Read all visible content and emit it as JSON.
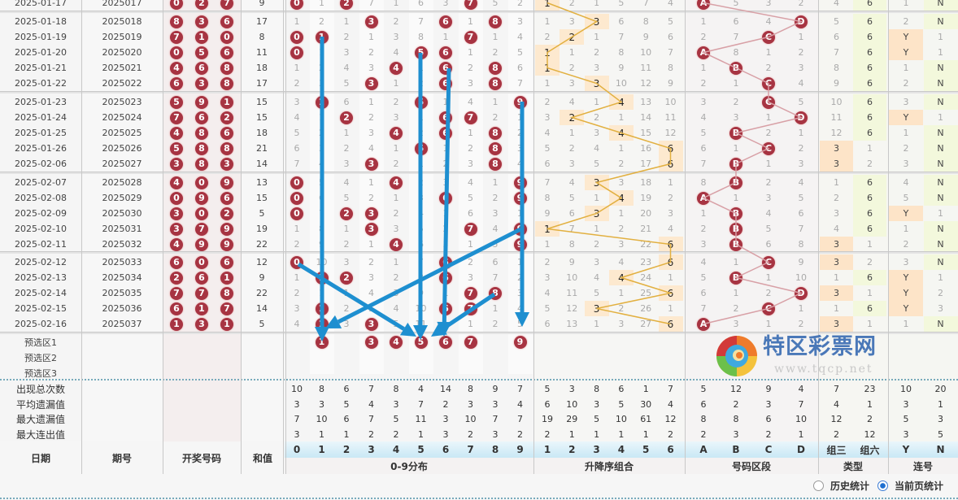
{
  "headers": {
    "date": "日期",
    "issue": "期号",
    "draw": "开奖号码",
    "sum": "和值",
    "digits": [
      "0",
      "1",
      "2",
      "3",
      "4",
      "5",
      "6",
      "7",
      "8",
      "9"
    ],
    "dist_label": "0-9分布",
    "asc": [
      "1",
      "2",
      "3",
      "4",
      "5",
      "6"
    ],
    "asc_label": "升降序组合",
    "zones": [
      "A",
      "B",
      "C",
      "D"
    ],
    "zones_label": "号码区段",
    "types": [
      "组三",
      "组六"
    ],
    "types_label": "类型",
    "lian": [
      "Y",
      "N"
    ],
    "lian_label": "连号"
  },
  "rows": [
    {
      "date": "2025-01-17",
      "issue": "2025017",
      "draw": [
        "0",
        "2",
        "7"
      ],
      "sum": "9",
      "dist": [
        "0",
        "1",
        "2",
        "7",
        "1",
        "6",
        "3",
        "7",
        "5",
        "2"
      ],
      "asc": [
        "1",
        "2",
        "1",
        "5",
        "7",
        "4"
      ],
      "asc_hit": 0,
      "ad": [
        "A",
        "5",
        "3",
        "2"
      ],
      "ad_hit": 0,
      "ty": [
        "4",
        "6"
      ],
      "ty_hit": 1,
      "lh": [
        "1",
        "N"
      ],
      "lh_hit": 1
    },
    {
      "date": "2025-01-18",
      "issue": "2025018",
      "draw": [
        "8",
        "3",
        "6"
      ],
      "sum": "17",
      "dist": [
        "1",
        "2",
        "1",
        "3",
        "2",
        "7",
        "6",
        "1",
        "8",
        "3"
      ],
      "asc": [
        "1",
        "3",
        "3",
        "6",
        "8",
        "5"
      ],
      "asc_hit": 2,
      "ad": [
        "1",
        "6",
        "4",
        "D"
      ],
      "ad_hit": 3,
      "ty": [
        "5",
        "6"
      ],
      "ty_hit": 1,
      "lh": [
        "2",
        "N"
      ],
      "lh_hit": 1
    },
    {
      "date": "2025-01-19",
      "issue": "2025019",
      "draw": [
        "7",
        "1",
        "0"
      ],
      "sum": "8",
      "dist": [
        "0",
        "1",
        "2",
        "1",
        "3",
        "8",
        "1",
        "7",
        "1",
        "4"
      ],
      "asc": [
        "2",
        "2",
        "1",
        "7",
        "9",
        "6"
      ],
      "asc_hit": 1,
      "ad": [
        "2",
        "7",
        "C",
        "1"
      ],
      "ad_hit": 2,
      "ty": [
        "6",
        "6"
      ],
      "ty_hit": 1,
      "lh": [
        "Y",
        "1"
      ],
      "lh_hit": 0
    },
    {
      "date": "2025-01-20",
      "issue": "2025020",
      "draw": [
        "0",
        "5",
        "6"
      ],
      "sum": "11",
      "dist": [
        "0",
        "1",
        "3",
        "2",
        "4",
        "5",
        "6",
        "1",
        "2",
        "5"
      ],
      "asc": [
        "1",
        "1",
        "2",
        "8",
        "10",
        "7"
      ],
      "asc_hit": 0,
      "ad": [
        "A",
        "8",
        "1",
        "2"
      ],
      "ad_hit": 0,
      "ty": [
        "7",
        "6"
      ],
      "ty_hit": 1,
      "lh": [
        "Y",
        "1"
      ],
      "lh_hit": 0
    },
    {
      "date": "2025-01-21",
      "issue": "2025021",
      "draw": [
        "4",
        "6",
        "8"
      ],
      "sum": "18",
      "dist": [
        "1",
        "2",
        "4",
        "3",
        "4",
        "1",
        "6",
        "2",
        "8",
        "6"
      ],
      "asc": [
        "1",
        "2",
        "3",
        "9",
        "11",
        "8"
      ],
      "asc_hit": 0,
      "ad": [
        "1",
        "B",
        "2",
        "3"
      ],
      "ad_hit": 1,
      "ty": [
        "8",
        "6"
      ],
      "ty_hit": 1,
      "lh": [
        "1",
        "N"
      ],
      "lh_hit": 1
    },
    {
      "date": "2025-01-22",
      "issue": "2025022",
      "draw": [
        "6",
        "3",
        "8"
      ],
      "sum": "17",
      "dist": [
        "2",
        "3",
        "5",
        "3",
        "1",
        "2",
        "6",
        "3",
        "8",
        "7"
      ],
      "asc": [
        "1",
        "3",
        "3",
        "10",
        "12",
        "9"
      ],
      "asc_hit": 2,
      "ad": [
        "2",
        "1",
        "C",
        "4"
      ],
      "ad_hit": 2,
      "ty": [
        "9",
        "6"
      ],
      "ty_hit": 1,
      "lh": [
        "2",
        "N"
      ],
      "lh_hit": 1
    },
    {
      "date": "2025-01-23",
      "issue": "2025023",
      "draw": [
        "5",
        "9",
        "1"
      ],
      "sum": "15",
      "dist": [
        "3",
        "1",
        "6",
        "1",
        "2",
        "5",
        "1",
        "4",
        "1",
        "9"
      ],
      "asc": [
        "2",
        "4",
        "1",
        "4",
        "13",
        "10"
      ],
      "asc_hit": 3,
      "ad": [
        "3",
        "2",
        "C",
        "5"
      ],
      "ad_hit": 2,
      "ty": [
        "10",
        "6"
      ],
      "ty_hit": 1,
      "lh": [
        "3",
        "N"
      ],
      "lh_hit": 1
    },
    {
      "date": "2025-01-24",
      "issue": "2025024",
      "draw": [
        "7",
        "6",
        "2"
      ],
      "sum": "15",
      "dist": [
        "4",
        "1",
        "2",
        "2",
        "3",
        "1",
        "6",
        "7",
        "2",
        "1"
      ],
      "asc": [
        "3",
        "2",
        "2",
        "1",
        "14",
        "11"
      ],
      "asc_hit": 1,
      "ad": [
        "4",
        "3",
        "1",
        "D"
      ],
      "ad_hit": 3,
      "ty": [
        "11",
        "6"
      ],
      "ty_hit": 1,
      "lh": [
        "Y",
        "1"
      ],
      "lh_hit": 0
    },
    {
      "date": "2025-01-25",
      "issue": "2025025",
      "draw": [
        "4",
        "8",
        "6"
      ],
      "sum": "18",
      "dist": [
        "5",
        "2",
        "1",
        "3",
        "4",
        "2",
        "6",
        "1",
        "8",
        "2"
      ],
      "asc": [
        "4",
        "1",
        "3",
        "4",
        "15",
        "12"
      ],
      "asc_hit": 3,
      "ad": [
        "5",
        "B",
        "2",
        "1"
      ],
      "ad_hit": 1,
      "ty": [
        "12",
        "6"
      ],
      "ty_hit": 1,
      "lh": [
        "1",
        "N"
      ],
      "lh_hit": 1
    },
    {
      "date": "2025-01-26",
      "issue": "2025026",
      "draw": [
        "5",
        "8",
        "8"
      ],
      "sum": "21",
      "dist": [
        "6",
        "3",
        "2",
        "4",
        "1",
        "5",
        "1",
        "2",
        "8",
        "3"
      ],
      "asc": [
        "5",
        "2",
        "4",
        "1",
        "16",
        "6"
      ],
      "asc_hit": 5,
      "ad": [
        "6",
        "1",
        "C",
        "2"
      ],
      "ad_hit": 2,
      "ty": [
        "3",
        "1"
      ],
      "ty_hit": 0,
      "lh": [
        "2",
        "N"
      ],
      "lh_hit": 1
    },
    {
      "date": "2025-02-06",
      "issue": "2025027",
      "draw": [
        "3",
        "8",
        "3"
      ],
      "sum": "14",
      "dist": [
        "7",
        "4",
        "3",
        "3",
        "2",
        "1",
        "2",
        "3",
        "8",
        "4"
      ],
      "asc": [
        "6",
        "3",
        "5",
        "2",
        "17",
        "6"
      ],
      "asc_hit": 5,
      "ad": [
        "7",
        "B",
        "1",
        "3"
      ],
      "ad_hit": 1,
      "ty": [
        "3",
        "2"
      ],
      "ty_hit": 0,
      "lh": [
        "3",
        "N"
      ],
      "lh_hit": 1
    },
    {
      "date": "2025-02-07",
      "issue": "2025028",
      "draw": [
        "4",
        "0",
        "9"
      ],
      "sum": "13",
      "dist": [
        "0",
        "5",
        "4",
        "1",
        "4",
        "2",
        "3",
        "4",
        "1",
        "9"
      ],
      "asc": [
        "7",
        "4",
        "3",
        "3",
        "18",
        "1"
      ],
      "asc_hit": 2,
      "ad": [
        "8",
        "B",
        "2",
        "4"
      ],
      "ad_hit": 1,
      "ty": [
        "1",
        "6"
      ],
      "ty_hit": 1,
      "lh": [
        "4",
        "N"
      ],
      "lh_hit": 1
    },
    {
      "date": "2025-02-08",
      "issue": "2025029",
      "draw": [
        "0",
        "9",
        "6"
      ],
      "sum": "15",
      "dist": [
        "0",
        "6",
        "5",
        "2",
        "1",
        "3",
        "6",
        "5",
        "2",
        "9"
      ],
      "asc": [
        "8",
        "5",
        "1",
        "4",
        "19",
        "2"
      ],
      "asc_hit": 3,
      "ad": [
        "A",
        "1",
        "3",
        "5"
      ],
      "ad_hit": 0,
      "ty": [
        "2",
        "6"
      ],
      "ty_hit": 1,
      "lh": [
        "5",
        "N"
      ],
      "lh_hit": 1
    },
    {
      "date": "2025-02-09",
      "issue": "2025030",
      "draw": [
        "3",
        "0",
        "2"
      ],
      "sum": "5",
      "dist": [
        "0",
        "7",
        "2",
        "3",
        "2",
        "4",
        "1",
        "6",
        "3",
        "1"
      ],
      "asc": [
        "9",
        "6",
        "3",
        "1",
        "20",
        "3"
      ],
      "asc_hit": 2,
      "ad": [
        "1",
        "B",
        "4",
        "6"
      ],
      "ad_hit": 1,
      "ty": [
        "3",
        "6"
      ],
      "ty_hit": 1,
      "lh": [
        "Y",
        "1"
      ],
      "lh_hit": 0
    },
    {
      "date": "2025-02-10",
      "issue": "2025031",
      "draw": [
        "3",
        "7",
        "9"
      ],
      "sum": "19",
      "dist": [
        "1",
        "8",
        "1",
        "3",
        "3",
        "5",
        "2",
        "7",
        "4",
        "9"
      ],
      "asc": [
        "1",
        "7",
        "1",
        "2",
        "21",
        "4"
      ],
      "asc_hit": 0,
      "ad": [
        "2",
        "B",
        "5",
        "7"
      ],
      "ad_hit": 1,
      "ty": [
        "4",
        "6"
      ],
      "ty_hit": 1,
      "lh": [
        "1",
        "N"
      ],
      "lh_hit": 1
    },
    {
      "date": "2025-02-11",
      "issue": "2025032",
      "draw": [
        "4",
        "9",
        "9"
      ],
      "sum": "22",
      "dist": [
        "2",
        "9",
        "2",
        "1",
        "4",
        "6",
        "3",
        "1",
        "5",
        "9"
      ],
      "asc": [
        "1",
        "8",
        "2",
        "3",
        "22",
        "6"
      ],
      "asc_hit": 5,
      "ad": [
        "3",
        "B",
        "6",
        "8"
      ],
      "ad_hit": 1,
      "ty": [
        "3",
        "1"
      ],
      "ty_hit": 0,
      "lh": [
        "2",
        "N"
      ],
      "lh_hit": 1
    },
    {
      "date": "2025-02-12",
      "issue": "2025033",
      "draw": [
        "6",
        "0",
        "6"
      ],
      "sum": "12",
      "dist": [
        "0",
        "10",
        "3",
        "2",
        "1",
        "7",
        "6",
        "2",
        "6",
        "1"
      ],
      "asc": [
        "2",
        "9",
        "3",
        "4",
        "23",
        "6"
      ],
      "asc_hit": 5,
      "ad": [
        "4",
        "1",
        "C",
        "9"
      ],
      "ad_hit": 2,
      "ty": [
        "3",
        "2"
      ],
      "ty_hit": 0,
      "lh": [
        "3",
        "N"
      ],
      "lh_hit": 1
    },
    {
      "date": "2025-02-13",
      "issue": "2025034",
      "draw": [
        "2",
        "6",
        "1"
      ],
      "sum": "9",
      "dist": [
        "1",
        "1",
        "2",
        "3",
        "2",
        "8",
        "6",
        "3",
        "7",
        "2"
      ],
      "asc": [
        "3",
        "10",
        "4",
        "4",
        "24",
        "1"
      ],
      "asc_hit": 3,
      "ad": [
        "5",
        "B",
        "1",
        "10"
      ],
      "ad_hit": 1,
      "ty": [
        "1",
        "6"
      ],
      "ty_hit": 1,
      "lh": [
        "Y",
        "1"
      ],
      "lh_hit": 0
    },
    {
      "date": "2025-02-14",
      "issue": "2025035",
      "draw": [
        "7",
        "7",
        "8"
      ],
      "sum": "22",
      "dist": [
        "2",
        "1",
        "1",
        "4",
        "3",
        "9",
        "1",
        "7",
        "8",
        "3"
      ],
      "asc": [
        "4",
        "11",
        "5",
        "1",
        "25",
        "6"
      ],
      "asc_hit": 5,
      "ad": [
        "6",
        "1",
        "2",
        "D"
      ],
      "ad_hit": 3,
      "ty": [
        "3",
        "1"
      ],
      "ty_hit": 0,
      "lh": [
        "Y",
        "2"
      ],
      "lh_hit": 0
    },
    {
      "date": "2025-02-15",
      "issue": "2025036",
      "draw": [
        "6",
        "1",
        "7"
      ],
      "sum": "14",
      "dist": [
        "3",
        "1",
        "2",
        "5",
        "4",
        "10",
        "6",
        "7",
        "1",
        "4"
      ],
      "asc": [
        "5",
        "12",
        "3",
        "2",
        "26",
        "1"
      ],
      "asc_hit": 2,
      "ad": [
        "7",
        "2",
        "C",
        "1"
      ],
      "ad_hit": 2,
      "ty": [
        "1",
        "6"
      ],
      "ty_hit": 1,
      "lh": [
        "Y",
        "3"
      ],
      "lh_hit": 0
    },
    {
      "date": "2025-02-16",
      "issue": "2025037",
      "draw": [
        "1",
        "3",
        "1"
      ],
      "sum": "5",
      "dist": [
        "4",
        "1",
        "3",
        "3",
        "5",
        "11",
        "1",
        "1",
        "2",
        "5"
      ],
      "asc": [
        "6",
        "13",
        "1",
        "3",
        "27",
        "6"
      ],
      "asc_hit": 5,
      "ad": [
        "A",
        "3",
        "1",
        "2"
      ],
      "ad_hit": 0,
      "ty": [
        "3",
        "1"
      ],
      "ty_hit": 0,
      "lh": [
        "1",
        "N"
      ],
      "lh_hit": 1
    }
  ],
  "preselect": [
    {
      "label": "预选区1",
      "balls": [
        "1",
        "3",
        "4",
        "5",
        "6",
        "7",
        "9"
      ]
    },
    {
      "label": "预选区2",
      "balls": []
    },
    {
      "label": "预选区3",
      "balls": []
    }
  ],
  "stats": [
    {
      "label": "出现总次数",
      "values": [
        "10",
        "8",
        "6",
        "7",
        "8",
        "4",
        "14",
        "8",
        "9",
        "7",
        "5",
        "3",
        "8",
        "6",
        "1",
        "7",
        "5",
        "12",
        "9",
        "4",
        "7",
        "23",
        "10",
        "20"
      ]
    },
    {
      "label": "平均遗漏值",
      "values": [
        "3",
        "3",
        "5",
        "4",
        "3",
        "7",
        "2",
        "3",
        "3",
        "4",
        "6",
        "10",
        "3",
        "5",
        "30",
        "4",
        "6",
        "2",
        "3",
        "7",
        "4",
        "1",
        "3",
        "1"
      ]
    },
    {
      "label": "最大遗漏值",
      "values": [
        "7",
        "10",
        "6",
        "7",
        "5",
        "11",
        "3",
        "10",
        "7",
        "7",
        "19",
        "29",
        "5",
        "10",
        "61",
        "12",
        "8",
        "8",
        "6",
        "10",
        "12",
        "2",
        "5",
        "3"
      ]
    },
    {
      "label": "最大连出值",
      "values": [
        "3",
        "1",
        "1",
        "2",
        "2",
        "1",
        "3",
        "2",
        "3",
        "2",
        "2",
        "1",
        "1",
        "1",
        "1",
        "2",
        "2",
        "3",
        "2",
        "1",
        "2",
        "12",
        "3",
        "5"
      ]
    }
  ],
  "footer": {
    "radio_history": "历史统计",
    "radio_current": "当前页统计",
    "selected": "当前页统计"
  },
  "logo": {
    "name": "特区彩票网",
    "url": "www.tqcp.net"
  },
  "colors": {
    "ball": "#a73442",
    "arrow": "#1e8fd0",
    "asc_line": "#e2b040",
    "zone_line": "#d8a0a6",
    "logo_text": "#4a78b8"
  }
}
